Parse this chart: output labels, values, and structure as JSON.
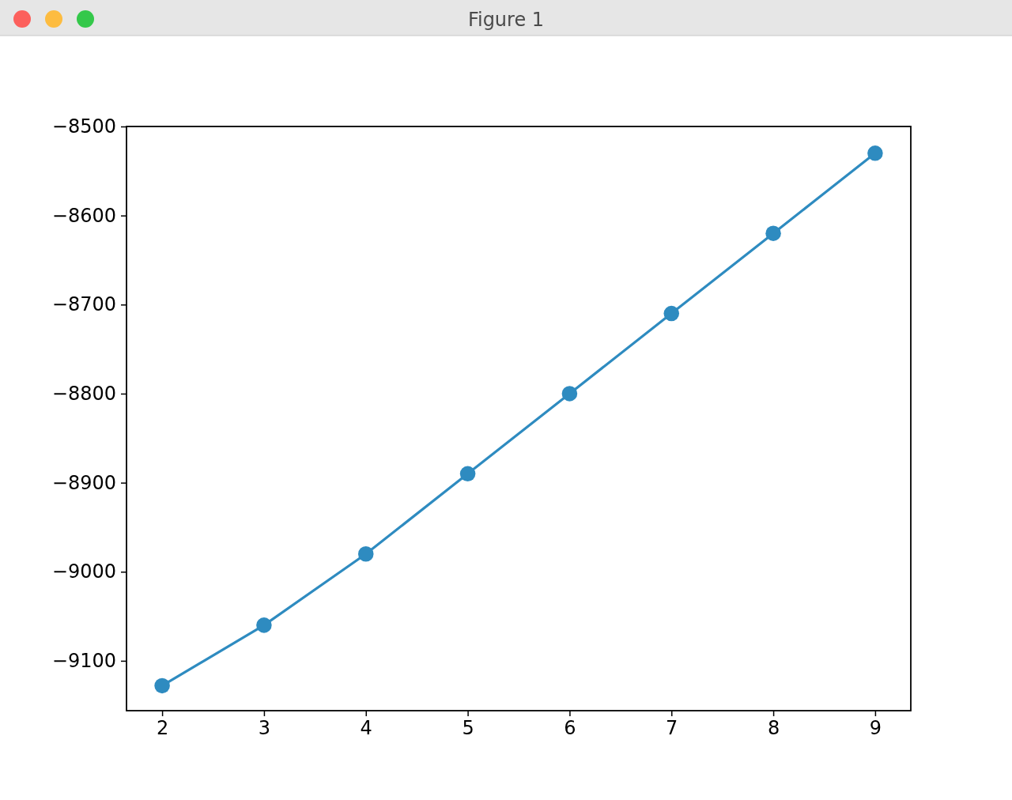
{
  "chart_data": {
    "type": "line",
    "title": "Figure 1",
    "x": [
      2,
      3,
      4,
      5,
      6,
      7,
      8,
      9
    ],
    "series": [
      {
        "color": "#2e8bc0",
        "values": [
          -9128,
          -9060,
          -8980,
          -8890,
          -8800,
          -8710,
          -8620,
          -8530
        ]
      }
    ],
    "xlim": [
      1.65,
      9.35
    ],
    "xticks": [
      2,
      3,
      4,
      5,
      6,
      7,
      8,
      9
    ],
    "ylim": [
      -9156,
      -8500
    ],
    "yticks": [
      {
        "value": -9100,
        "label": "−9100"
      },
      {
        "value": -9000,
        "label": "−9000"
      },
      {
        "value": -8900,
        "label": "−8900"
      },
      {
        "value": -8800,
        "label": "−8800"
      },
      {
        "value": -8700,
        "label": "−8700"
      },
      {
        "value": -8600,
        "label": "−8600"
      },
      {
        "value": -8500,
        "label": "−8500"
      }
    ],
    "grid": false,
    "marker": "circle",
    "line_style": "solid"
  }
}
